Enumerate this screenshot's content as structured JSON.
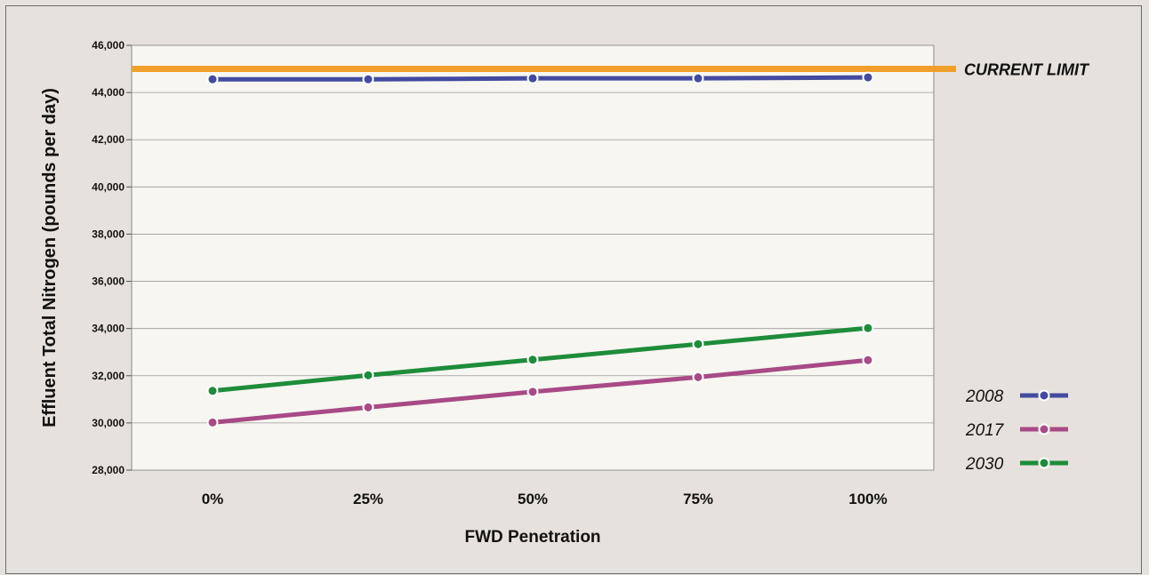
{
  "chart_data": {
    "type": "line",
    "categories": [
      "0%",
      "25%",
      "50%",
      "75%",
      "100%"
    ],
    "xlabel": "FWD Penetration",
    "ylabel": "Effluent Total Nitrogen (pounds per day)",
    "ylim": [
      28000,
      46000
    ],
    "yticks": [
      28000,
      30000,
      32000,
      34000,
      36000,
      38000,
      40000,
      42000,
      44000,
      46000
    ],
    "ytick_labels": [
      "28,000",
      "30,000",
      "32,000",
      "34,000",
      "36,000",
      "38,000",
      "40,000",
      "42,000",
      "44,000",
      "46,000"
    ],
    "grid": true,
    "legend_position": "right",
    "reference_line": {
      "value": 45000,
      "label": "CURRENT LIMIT",
      "color": "#f0a02a"
    },
    "series": [
      {
        "name": "2008",
        "color": "#434aa0",
        "values": [
          44560,
          44560,
          44600,
          44600,
          44640
        ]
      },
      {
        "name": "2017",
        "color": "#a84a86",
        "values": [
          30020,
          30660,
          31320,
          31940,
          32660
        ]
      },
      {
        "name": "2030",
        "color": "#1e8c3a",
        "values": [
          31360,
          32020,
          32680,
          33340,
          34020
        ]
      }
    ]
  }
}
